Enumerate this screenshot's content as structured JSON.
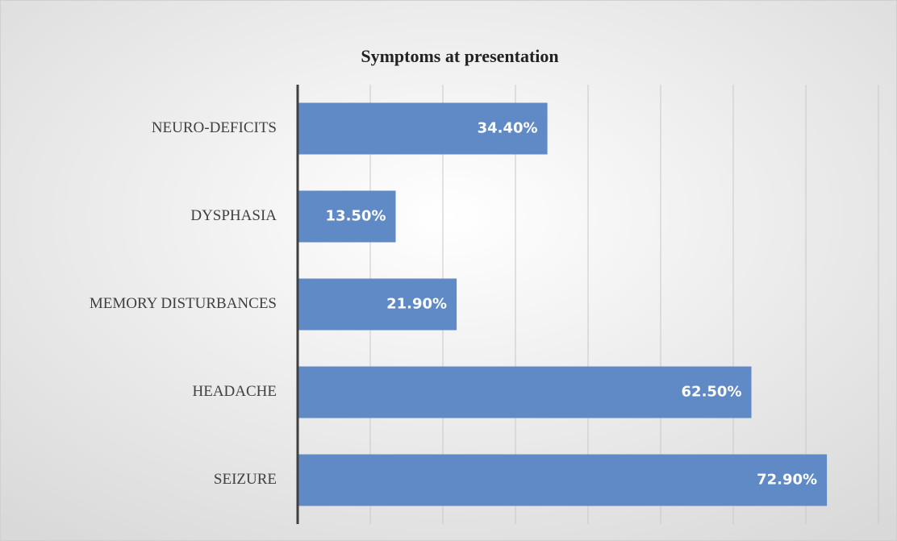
{
  "chart_data": {
    "type": "bar",
    "orientation": "horizontal",
    "title": "Symptoms  at presentation",
    "categories": [
      "NEURO-DEFICITS",
      "DYSPHASIA",
      "MEMORY DISTURBANCES",
      "HEADACHE",
      "SEIZURE"
    ],
    "values": [
      34.4,
      13.5,
      21.9,
      62.5,
      72.9
    ],
    "value_labels": [
      "34.40%",
      "13.50%",
      "21.90%",
      "62.50%",
      "72.90%"
    ],
    "color": "#5f8ac6",
    "xlim": [
      0,
      80
    ],
    "xticks": [
      0,
      10,
      20,
      30,
      40,
      50,
      60,
      70,
      80
    ],
    "grid": true
  }
}
